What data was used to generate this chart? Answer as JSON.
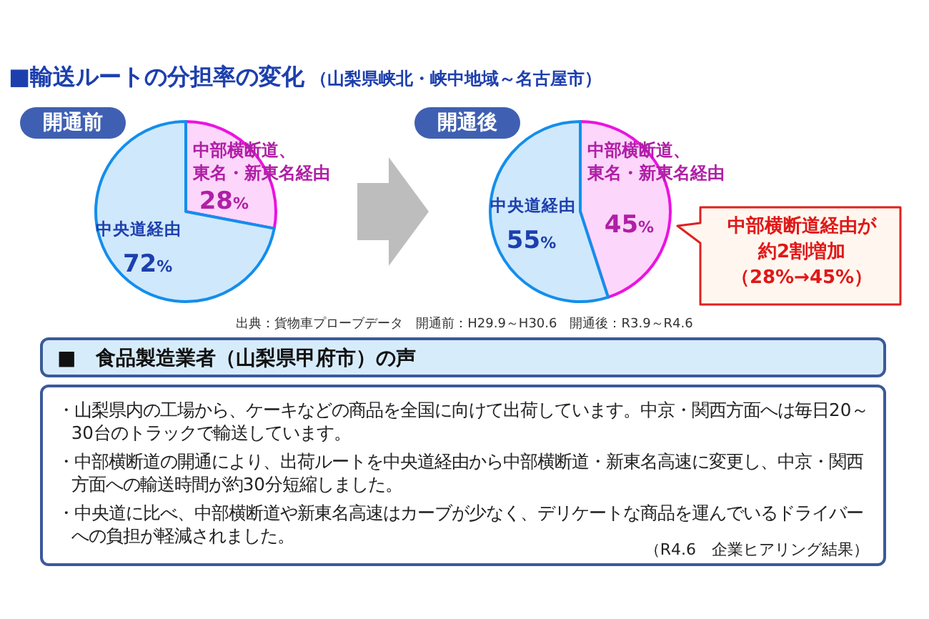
{
  "chart_data": [
    {
      "type": "other",
      "title": "■輸送ルートの分担率の変化",
      "subtitle": "（山梨県峡北・峡中地域～名古屋市）"
    },
    {
      "type": "pie",
      "title": "開通前",
      "categories": [
        "中部横断道、東名・新東名経由",
        "中央道経由"
      ],
      "values": [
        28,
        72
      ],
      "colors": [
        "#fdd6fb",
        "#cfe8fb"
      ],
      "value_labels": [
        "28%",
        "72%"
      ]
    },
    {
      "type": "pie",
      "title": "開通後",
      "categories": [
        "中部横断道、東名・新東名経由",
        "中央道経由"
      ],
      "values": [
        45,
        55
      ],
      "colors": [
        "#fdd6fb",
        "#cfe8fb"
      ],
      "value_labels": [
        "45%",
        "55%"
      ],
      "annotations": [
        "中部横断道経由が約2割増加（28%→45%）",
        "出典：貨物車プローブデータ　開通前：H29.9～H30.6　開通後：R3.9～R4.6"
      ]
    },
    {
      "type": "other",
      "title": "■　食品製造業者（山梨県甲府市）の声",
      "annotations": [
        "・山梨県内の工場から、ケーキなどの商品を全国に向けて出荷しています。中京・関西方面へは毎日20～30台のトラックで輸送しています。",
        "・中部横断道の開通により、出荷ルートを中央道経由から中部横断道・新東名高速に変更し、中京・関西方面への輸送時間が約30分短縮しました。",
        "・中央道に比べ、中部横断道や新東名高速はカーブが少なく、デリケートな商品を運んでいるドライバーへの負担が軽減されました。",
        "（R4.6　企業ヒアリング結果）"
      ]
    }
  ]
}
